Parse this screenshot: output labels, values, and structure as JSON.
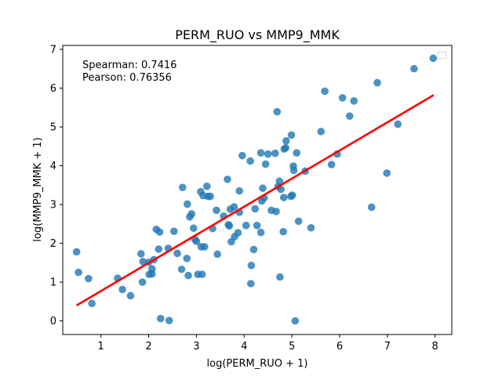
{
  "chart_data": {
    "type": "scatter",
    "title": "PERM_RUO vs MMP9_MMK",
    "xlabel": "log(PERM_RUO + 1)",
    "ylabel": "log(MMP9_MMK + 1)",
    "xlim": [
      0.2,
      8.35
    ],
    "ylim": [
      -0.35,
      7.1
    ],
    "xticks": [
      "1",
      "2",
      "3",
      "4",
      "5",
      "6",
      "7",
      "8"
    ],
    "yticks": [
      "0",
      "1",
      "2",
      "3",
      "4",
      "5",
      "6",
      "7"
    ],
    "xtick_values": [
      1,
      2,
      3,
      4,
      5,
      6,
      7,
      8
    ],
    "ytick_values": [
      0,
      1,
      2,
      3,
      4,
      5,
      6,
      7
    ],
    "grid": false,
    "legend": "upper-right, empty",
    "annotations": [
      "Spearman: 0.7416",
      "Pearson: 0.76356"
    ],
    "point_color": "#1f77b4",
    "regression_line": {
      "color": "#ff0000",
      "x": [
        0.49,
        7.97
      ],
      "y": [
        0.4,
        5.82
      ]
    },
    "points": [
      [
        0.49,
        1.78
      ],
      [
        0.53,
        1.25
      ],
      [
        0.74,
        1.09
      ],
      [
        0.81,
        0.45
      ],
      [
        1.35,
        1.1
      ],
      [
        1.45,
        0.81
      ],
      [
        1.62,
        0.65
      ],
      [
        1.84,
        1.73
      ],
      [
        1.87,
        1.0
      ],
      [
        1.88,
        1.53
      ],
      [
        2.0,
        1.51
      ],
      [
        2.01,
        1.2
      ],
      [
        2.07,
        1.34
      ],
      [
        2.07,
        1.21
      ],
      [
        2.11,
        1.58
      ],
      [
        2.16,
        2.36
      ],
      [
        2.21,
        1.85
      ],
      [
        2.23,
        2.29
      ],
      [
        2.25,
        0.06
      ],
      [
        2.41,
        1.87
      ],
      [
        2.43,
        0.01
      ],
      [
        2.53,
        2.31
      ],
      [
        2.6,
        1.74
      ],
      [
        2.69,
        1.33
      ],
      [
        2.71,
        3.44
      ],
      [
        2.8,
        1.61
      ],
      [
        2.81,
        3.01
      ],
      [
        2.83,
        1.17
      ],
      [
        2.86,
        2.68
      ],
      [
        2.9,
        2.76
      ],
      [
        2.94,
        2.39
      ],
      [
        2.97,
        2.1
      ],
      [
        3.0,
        2.05
      ],
      [
        3.03,
        1.2
      ],
      [
        3.09,
        3.33
      ],
      [
        3.1,
        1.91
      ],
      [
        3.12,
        1.2
      ],
      [
        3.14,
        3.23
      ],
      [
        3.17,
        1.91
      ],
      [
        3.22,
        3.47
      ],
      [
        3.24,
        3.21
      ],
      [
        3.29,
        3.21
      ],
      [
        3.34,
        2.38
      ],
      [
        3.42,
        2.85
      ],
      [
        3.44,
        1.72
      ],
      [
        3.57,
        2.7
      ],
      [
        3.65,
        3.65
      ],
      [
        3.67,
        2.48
      ],
      [
        3.69,
        2.45
      ],
      [
        3.71,
        2.88
      ],
      [
        3.73,
        2.04
      ],
      [
        3.79,
        2.94
      ],
      [
        3.8,
        2.17
      ],
      [
        3.87,
        2.27
      ],
      [
        3.9,
        2.8
      ],
      [
        3.9,
        3.35
      ],
      [
        3.96,
        4.26
      ],
      [
        4.04,
        2.46
      ],
      [
        4.13,
        4.12
      ],
      [
        4.14,
        0.96
      ],
      [
        4.15,
        1.43
      ],
      [
        4.2,
        1.84
      ],
      [
        4.23,
        2.89
      ],
      [
        4.27,
        2.46
      ],
      [
        4.35,
        4.33
      ],
      [
        4.35,
        2.28
      ],
      [
        4.37,
        3.09
      ],
      [
        4.39,
        3.42
      ],
      [
        4.42,
        3.17
      ],
      [
        4.45,
        4.04
      ],
      [
        4.5,
        4.3
      ],
      [
        4.57,
        2.85
      ],
      [
        4.65,
        4.32
      ],
      [
        4.67,
        2.82
      ],
      [
        4.69,
        5.39
      ],
      [
        4.71,
        3.46
      ],
      [
        4.74,
        3.6
      ],
      [
        4.75,
        1.13
      ],
      [
        4.77,
        3.39
      ],
      [
        4.82,
        2.3
      ],
      [
        4.83,
        3.18
      ],
      [
        4.84,
        4.43
      ],
      [
        4.87,
        4.46
      ],
      [
        4.88,
        4.64
      ],
      [
        4.98,
        3.21
      ],
      [
        4.99,
        4.79
      ],
      [
        5.01,
        3.24
      ],
      [
        5.03,
        3.99
      ],
      [
        5.04,
        3.88
      ],
      [
        5.1,
        4.33
      ],
      [
        5.14,
        2.57
      ],
      [
        5.28,
        3.86
      ],
      [
        5.4,
        2.4
      ],
      [
        5.61,
        4.88
      ],
      [
        5.69,
        5.92
      ],
      [
        5.83,
        4.03
      ],
      [
        5.95,
        4.3
      ],
      [
        6.06,
        5.75
      ],
      [
        6.21,
        5.28
      ],
      [
        6.3,
        5.67
      ],
      [
        6.67,
        2.93
      ],
      [
        6.79,
        6.14
      ],
      [
        6.99,
        3.81
      ],
      [
        7.22,
        5.07
      ],
      [
        7.56,
        6.5
      ],
      [
        7.96,
        6.77
      ],
      [
        5.07,
        0.0
      ]
    ]
  }
}
